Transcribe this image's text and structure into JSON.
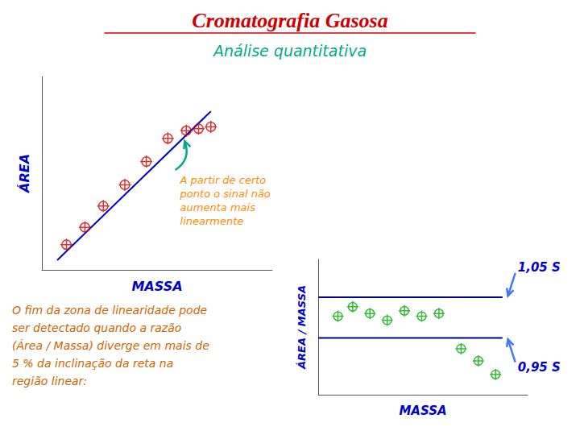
{
  "chart_data": [
    {
      "type": "scatter",
      "title": {
        "text": "Cromatografia Gasosa",
        "color": "#cc0000"
      },
      "subtitle": {
        "text": "Análise quantitativa",
        "color": "#00aa88"
      },
      "x_label": {
        "text": "MASSA",
        "color": "#0000cc"
      },
      "y_label": {
        "text": "ÁREA",
        "color": "#0000cc"
      },
      "xlim": [
        0,
        0.75
      ],
      "ylim": [
        0,
        1.0
      ],
      "xticks": [],
      "yticks": [],
      "tick_labels": false,
      "grid": false,
      "series": [
        {
          "type": "line",
          "color": "#0000cc",
          "x": [
            0.05,
            0.55
          ],
          "values": [
            0.05,
            0.82
          ]
        },
        {
          "type": "scatter",
          "color": "#cc0000",
          "marker": "circled_plus",
          "x": [
            0.08,
            0.14,
            0.2,
            0.27,
            0.34,
            0.41
          ],
          "values": [
            0.13,
            0.22,
            0.33,
            0.44,
            0.56,
            0.68
          ]
        },
        {
          "type": "scatter",
          "color": "#cc0000",
          "marker": "circled_plus",
          "x": [
            0.47,
            0.51,
            0.55
          ],
          "values": [
            0.72,
            0.73,
            0.74
          ]
        }
      ],
      "annotations": [
        {
          "text": "A partir de certo\nponto o sinal não\naumenta mais\nlinearmente",
          "color": "#ff8c00",
          "arrow_color": "#00aa88"
        }
      ],
      "note": {
        "text": "O fim da zona de linearidade pode\nser detectado quando a razão\n(Área / Massa) diverge em mais de\n5 % da inclinação da reta na\nregião linear:",
        "color": "#cc6600"
      }
    },
    {
      "type": "scatter",
      "x_label": {
        "text": "MASSA",
        "color": "#0000cc"
      },
      "y_label": {
        "text": "ÁREA / MASSA",
        "color": "#0000cc"
      },
      "xlim": [
        0,
        0.85
      ],
      "ylim": [
        0,
        1.0
      ],
      "xticks": [],
      "yticks": [],
      "tick_labels": false,
      "grid": false,
      "series": [
        {
          "type": "scatter",
          "color": "#00aa00",
          "marker": "circled_plus",
          "x": [
            0.08,
            0.14,
            0.21,
            0.28,
            0.35,
            0.42,
            0.49
          ],
          "values": [
            0.58,
            0.65,
            0.6,
            0.55,
            0.62,
            0.58,
            0.6
          ]
        },
        {
          "type": "scatter",
          "color": "#00aa00",
          "marker": "circled_plus",
          "x": [
            0.58,
            0.65,
            0.72
          ],
          "values": [
            0.34,
            0.25,
            0.15
          ]
        }
      ],
      "reference_lines": {
        "color": "#00008b",
        "label_color": "#0000cc",
        "arrow_color": "#4477ff",
        "lines": [
          {
            "y": 0.72,
            "label": "1,05 S"
          },
          {
            "y": 0.42,
            "label": "0,95 S"
          }
        ]
      }
    }
  ]
}
